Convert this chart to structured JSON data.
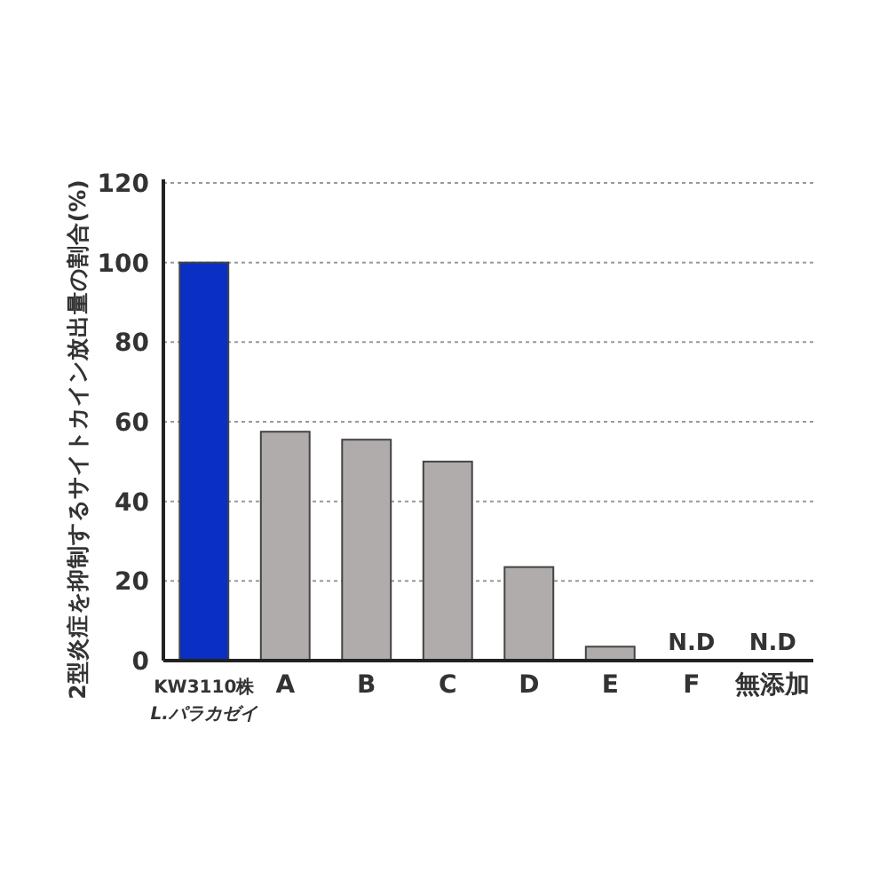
{
  "chart_data": {
    "type": "bar",
    "ylabel": "2型炎症を抑制するサイトカイン放出量の割合(%)",
    "categories": [
      "KW3110株\nL.パラカゼイ",
      "A",
      "B",
      "C",
      "D",
      "E",
      "F",
      "無添加"
    ],
    "values": [
      100,
      57.5,
      55.5,
      50,
      23.5,
      3.5,
      null,
      null
    ],
    "colors": [
      "#0a2fc4",
      "#b0acac",
      "#b0acac",
      "#b0acac",
      "#b0acac",
      "#b0acac",
      "#b0acac",
      "#b0acac"
    ],
    "value_labels": [
      null,
      null,
      null,
      null,
      null,
      null,
      "N.D",
      "N.D"
    ],
    "ylim": [
      0,
      120
    ],
    "yticks": [
      0,
      20,
      40,
      60,
      80,
      100,
      120
    ],
    "grid": "y"
  }
}
